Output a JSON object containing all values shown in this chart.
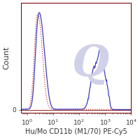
{
  "title": "",
  "xlabel": "Hu/Mo CD11b (M1/70) PE-Cy5",
  "ylabel": "Count",
  "background_color": "#ffffff",
  "border_color": "#7a0000",
  "blue_line_color": "#3333bb",
  "red_dot_color": "#cc3333",
  "watermark_color": "#d0d0e8",
  "xlabel_fontsize": 7.0,
  "ylabel_fontsize": 8,
  "tick_fontsize": 6.5,
  "tick_color": "#555555",
  "label_color": "#333333"
}
